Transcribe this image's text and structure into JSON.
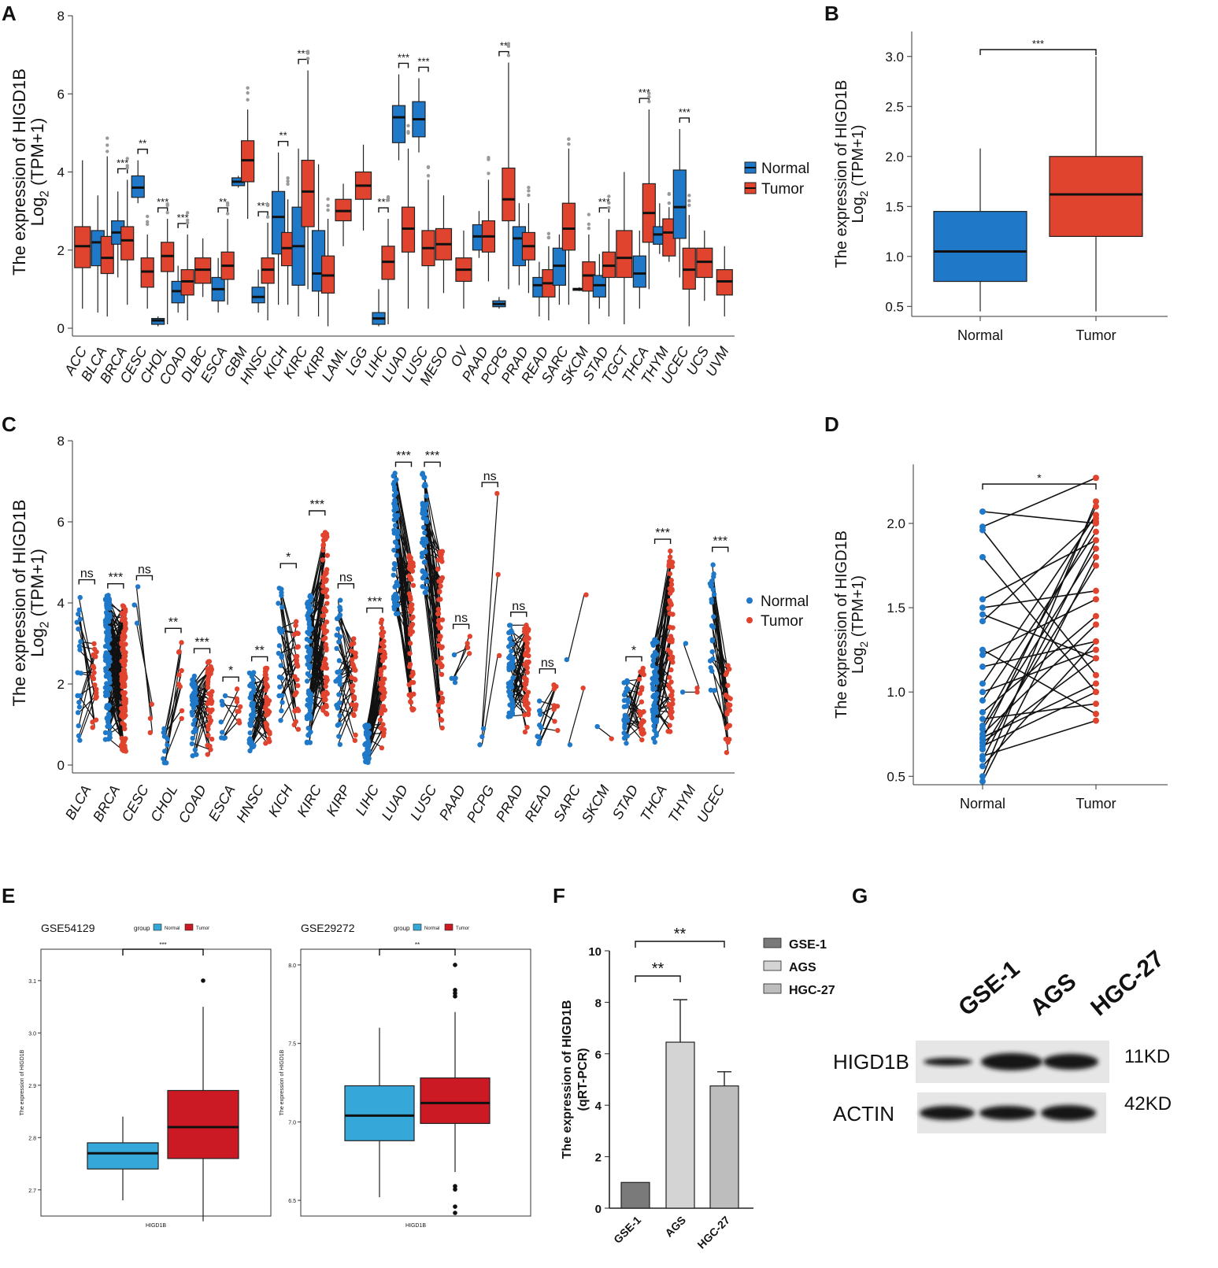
{
  "colors": {
    "normal": "#1f78c8",
    "tumor": "#e0442f",
    "geo_normal": "#35a7d8",
    "geo_tumor": "#cc1a24",
    "bar_gse1": "#7a7a7a",
    "bar_ags": "#d4d4d4",
    "bar_hgc27": "#bdbdbd",
    "axis": "#222222",
    "outlier": "#9a9a9a"
  },
  "panels": {
    "A": "A",
    "B": "B",
    "C": "C",
    "D": "D",
    "E": "E",
    "F": "F",
    "G": "G"
  },
  "common": {
    "ylabel_line1": "The expression of HIGD1B",
    "ylabel_line2": "Log",
    "ylabel_sub": "2",
    "ylabel_rest": " (TPM+1)",
    "legend_normal": "Normal",
    "legend_tumor": "Tumor"
  },
  "chart_data": [
    {
      "panel": "A",
      "type": "box",
      "ylim": [
        0,
        8
      ],
      "yticks": [
        "0",
        "2",
        "4",
        "6",
        "8"
      ],
      "cancers": [
        {
          "name": "ACC",
          "tumor": [
            0.5,
            1.55,
            2.1,
            2.6,
            4.3
          ]
        },
        {
          "name": "BLCA",
          "normal": [
            0.4,
            1.6,
            2.2,
            2.5,
            3.4
          ],
          "tumor": [
            0.3,
            1.4,
            1.8,
            2.35,
            4.4
          ],
          "sig": ""
        },
        {
          "name": "BRCA",
          "normal": [
            1.3,
            2.15,
            2.45,
            2.75,
            3.5
          ],
          "tumor": [
            0.6,
            1.75,
            2.25,
            2.6,
            3.8
          ],
          "sig": "***"
        },
        {
          "name": "CESC",
          "normal": [
            3.2,
            3.35,
            3.6,
            3.9,
            4.3
          ],
          "tumor": [
            0.5,
            1.05,
            1.45,
            1.8,
            2.4
          ],
          "sig": "**"
        },
        {
          "name": "CHOL",
          "normal": [
            0.05,
            0.1,
            0.2,
            0.25,
            0.3
          ],
          "tumor": [
            0.1,
            1.45,
            1.85,
            2.2,
            2.8
          ],
          "sig": "***"
        },
        {
          "name": "COAD",
          "normal": [
            0.4,
            0.65,
            0.95,
            1.2,
            1.6
          ],
          "tumor": [
            0.2,
            0.85,
            1.2,
            1.5,
            2.4
          ],
          "sig": "***"
        },
        {
          "name": "DLBC",
          "tumor": [
            0.8,
            1.15,
            1.5,
            1.8,
            2.3
          ]
        },
        {
          "name": "ESCA",
          "normal": [
            0.4,
            0.7,
            1.0,
            1.3,
            1.8
          ],
          "tumor": [
            0.6,
            1.25,
            1.6,
            1.95,
            2.8
          ],
          "sig": "**"
        },
        {
          "name": "GBM",
          "normal": [
            3.6,
            3.65,
            3.75,
            3.85,
            3.9
          ],
          "tumor": [
            2.8,
            3.75,
            4.3,
            4.8,
            5.6
          ],
          "sig": ""
        },
        {
          "name": "HNSC",
          "normal": [
            0.4,
            0.65,
            0.8,
            1.05,
            1.5
          ],
          "tumor": [
            0.2,
            1.15,
            1.5,
            1.8,
            2.7
          ],
          "sig": "***"
        },
        {
          "name": "KICH",
          "normal": [
            0.6,
            1.9,
            2.85,
            3.5,
            4.5
          ],
          "tumor": [
            0.6,
            1.6,
            2.05,
            2.45,
            3.3
          ],
          "sig": "**"
        },
        {
          "name": "KIRC",
          "normal": [
            0.3,
            1.1,
            2.1,
            3.1,
            4.6
          ],
          "tumor": [
            1.0,
            2.6,
            3.5,
            4.3,
            6.6
          ],
          "sig": "***"
        },
        {
          "name": "KIRP",
          "normal": [
            0.3,
            0.95,
            1.4,
            2.5,
            4.2
          ],
          "tumor": [
            0.05,
            0.9,
            1.35,
            1.85,
            2.8
          ],
          "sig": ""
        },
        {
          "name": "LAML",
          "tumor": [
            2.1,
            2.75,
            3.0,
            3.3,
            3.7
          ]
        },
        {
          "name": "LGG",
          "tumor": [
            2.5,
            3.3,
            3.65,
            4.0,
            4.7
          ]
        },
        {
          "name": "LIHC",
          "normal": [
            0.05,
            0.1,
            0.25,
            0.4,
            1.0
          ],
          "tumor": [
            0.1,
            1.25,
            1.7,
            2.1,
            2.8
          ],
          "sig": "***"
        },
        {
          "name": "LUAD",
          "normal": [
            4.3,
            4.75,
            5.4,
            5.7,
            6.5
          ],
          "tumor": [
            0.5,
            1.95,
            2.55,
            3.1,
            4.6
          ],
          "sig": "***"
        },
        {
          "name": "LUSC",
          "normal": [
            4.5,
            4.9,
            5.35,
            5.8,
            6.4
          ],
          "tumor": [
            0.5,
            1.6,
            2.05,
            2.5,
            3.8
          ],
          "sig": "***"
        },
        {
          "name": "MESO",
          "tumor": [
            0.9,
            1.75,
            2.15,
            2.55,
            3.4
          ]
        },
        {
          "name": "OV",
          "tumor": [
            0.5,
            1.2,
            1.5,
            1.8,
            2.5
          ]
        },
        {
          "name": "PAAD",
          "normal": [
            1.8,
            2.0,
            2.35,
            2.65,
            3.0
          ],
          "tumor": [
            1.2,
            1.95,
            2.35,
            2.75,
            3.8
          ],
          "sig": ""
        },
        {
          "name": "PCPG",
          "normal": [
            0.5,
            0.55,
            0.62,
            0.7,
            0.8
          ],
          "tumor": [
            1.0,
            2.75,
            3.3,
            4.1,
            6.8
          ],
          "sig": "**"
        },
        {
          "name": "PRAD",
          "normal": [
            1.1,
            1.6,
            2.3,
            2.6,
            3.2
          ],
          "tumor": [
            0.9,
            1.75,
            2.1,
            2.45,
            3.2
          ],
          "sig": ""
        },
        {
          "name": "READ",
          "normal": [
            0.3,
            0.8,
            1.1,
            1.3,
            1.7
          ],
          "tumor": [
            0.2,
            0.8,
            1.15,
            1.5,
            2.1
          ],
          "sig": ""
        },
        {
          "name": "SARC",
          "normal": [
            0.6,
            1.1,
            1.6,
            2.05,
            2.4
          ],
          "tumor": [
            0.6,
            2.0,
            2.55,
            3.2,
            4.6
          ],
          "sig": ""
        },
        {
          "name": "SKCM",
          "normal": [
            0.95,
            0.97,
            1.0,
            1.02,
            1.05
          ],
          "tumor": [
            0.1,
            0.95,
            1.35,
            1.7,
            2.4
          ],
          "sig": ""
        },
        {
          "name": "STAD",
          "normal": [
            0.5,
            0.8,
            1.1,
            1.35,
            1.9
          ],
          "tumor": [
            0.3,
            1.3,
            1.6,
            1.95,
            2.8
          ],
          "sig": "***"
        },
        {
          "name": "TGCT",
          "tumor": [
            0.1,
            1.3,
            1.8,
            2.5,
            4.0
          ]
        },
        {
          "name": "THCA",
          "normal": [
            0.5,
            1.05,
            1.4,
            1.85,
            2.5
          ],
          "tumor": [
            1.0,
            2.2,
            2.95,
            3.7,
            5.6
          ],
          "sig": "***"
        },
        {
          "name": "THYM",
          "normal": [
            1.9,
            2.15,
            2.4,
            2.6,
            3.2
          ],
          "tumor": [
            1.7,
            1.85,
            2.45,
            2.8,
            3.1
          ],
          "sig": ""
        },
        {
          "name": "UCEC",
          "normal": [
            1.3,
            2.3,
            3.1,
            4.05,
            5.1
          ],
          "tumor": [
            0.05,
            1.0,
            1.5,
            2.05,
            2.9
          ],
          "sig": "***"
        },
        {
          "name": "UCS",
          "tumor": [
            0.7,
            1.3,
            1.7,
            2.05,
            2.5
          ]
        },
        {
          "name": "UVM",
          "tumor": [
            0.3,
            0.85,
            1.2,
            1.5,
            2.1
          ]
        }
      ]
    },
    {
      "panel": "B",
      "type": "box",
      "ylim": [
        0.4,
        3.25
      ],
      "yticks": [
        "0.5",
        "1.0",
        "1.5",
        "2.0",
        "2.5",
        "3.0"
      ],
      "categories": [
        "Normal",
        "Tumor"
      ],
      "normal": [
        0.45,
        0.75,
        1.05,
        1.45,
        2.08
      ],
      "tumor": [
        0.45,
        1.2,
        1.62,
        2.0,
        3.0
      ],
      "sig": "***"
    },
    {
      "panel": "C",
      "type": "paired-scatter",
      "ylim": [
        0,
        8
      ],
      "yticks": [
        "0",
        "2",
        "4",
        "6",
        "8"
      ],
      "cancers": [
        {
          "name": "BLCA",
          "n": 19,
          "normal": [
            0.4,
            4.3
          ],
          "tumor": [
            0.8,
            3.2
          ],
          "sig": "ns"
        },
        {
          "name": "BRCA",
          "n": 112,
          "normal": [
            0.6,
            4.2
          ],
          "tumor": [
            0.3,
            4.0
          ],
          "sig": "***"
        },
        {
          "name": "CESC",
          "n": 3,
          "normal": [
            3.5,
            4.4
          ],
          "tumor": [
            0.8,
            1.5
          ],
          "sig": "ns"
        },
        {
          "name": "CHOL",
          "n": 9,
          "normal": [
            0.05,
            0.9
          ],
          "tumor": [
            0.9,
            3.1
          ],
          "sig": "**"
        },
        {
          "name": "COAD",
          "n": 41,
          "normal": [
            0.2,
            2.2
          ],
          "tumor": [
            0.1,
            2.6
          ],
          "sig": "***"
        },
        {
          "name": "ESCA",
          "n": 8,
          "normal": [
            0.6,
            1.8
          ],
          "tumor": [
            0.9,
            1.9
          ],
          "sig": "*"
        },
        {
          "name": "HNSC",
          "n": 43,
          "normal": [
            0.3,
            2.3
          ],
          "tumor": [
            0.5,
            2.4
          ],
          "sig": "**"
        },
        {
          "name": "KICH",
          "n": 25,
          "normal": [
            1.0,
            4.7
          ],
          "tumor": [
            0.8,
            3.6
          ],
          "sig": "*"
        },
        {
          "name": "KIRC",
          "n": 72,
          "normal": [
            0.5,
            4.2
          ],
          "tumor": [
            1.2,
            6.0
          ],
          "sig": "***"
        },
        {
          "name": "KIRP",
          "n": 32,
          "normal": [
            0.5,
            4.2
          ],
          "tumor": [
            0.6,
            3.2
          ],
          "sig": "ns"
        },
        {
          "name": "LIHC",
          "n": 50,
          "normal": [
            0.05,
            1.0
          ],
          "tumor": [
            0.4,
            3.6
          ],
          "sig": "***"
        },
        {
          "name": "LUAD",
          "n": 57,
          "normal": [
            3.6,
            7.2
          ],
          "tumor": [
            1.2,
            5.2
          ],
          "sig": "***"
        },
        {
          "name": "LUSC",
          "n": 49,
          "normal": [
            4.2,
            7.2
          ],
          "tumor": [
            0.9,
            5.3
          ],
          "sig": "***"
        },
        {
          "name": "PAAD",
          "n": 4,
          "normal": [
            1.5,
            3.2
          ],
          "tumor": [
            2.2,
            3.2
          ],
          "sig": "ns"
        },
        {
          "name": "PCPG",
          "n": 3,
          "normal": [
            0.5,
            0.9
          ],
          "tumor": [
            2.7,
            6.7
          ],
          "sig": "ns"
        },
        {
          "name": "PRAD",
          "n": 50,
          "normal": [
            1.0,
            3.5
          ],
          "tumor": [
            0.8,
            3.5
          ],
          "sig": "ns"
        },
        {
          "name": "READ",
          "n": 10,
          "normal": [
            0.4,
            1.6
          ],
          "tumor": [
            0.5,
            2.1
          ],
          "sig": "ns"
        },
        {
          "name": "SARC",
          "n": 2,
          "normal": [
            0.5,
            2.6
          ],
          "tumor": [
            1.9,
            4.2
          ],
          "sig": ""
        },
        {
          "name": "SKCM",
          "n": 1,
          "normal": [
            0.95,
            0.95
          ],
          "tumor": [
            0.65,
            0.65
          ],
          "sig": ""
        },
        {
          "name": "STAD",
          "n": 27,
          "normal": [
            0.5,
            2.1
          ],
          "tumor": [
            0.6,
            2.4
          ],
          "sig": "*"
        },
        {
          "name": "THCA",
          "n": 58,
          "normal": [
            0.5,
            3.2
          ],
          "tumor": [
            0.8,
            5.3
          ],
          "sig": "***"
        },
        {
          "name": "THYM",
          "n": 2,
          "normal": [
            1.8,
            3.0
          ],
          "tumor": [
            1.8,
            1.9
          ],
          "sig": ""
        },
        {
          "name": "UCEC",
          "n": 23,
          "normal": [
            1.5,
            5.1
          ],
          "tumor": [
            0.0,
            2.5
          ],
          "sig": "***"
        }
      ]
    },
    {
      "panel": "D",
      "type": "paired-scatter",
      "ylim": [
        0.45,
        2.35
      ],
      "yticks": [
        "0.5",
        "1.0",
        "1.5",
        "2.0"
      ],
      "categories": [
        "Normal",
        "Tumor"
      ],
      "sig": "*",
      "pairs": [
        [
          2.07,
          2.0
        ],
        [
          1.98,
          2.27
        ],
        [
          1.96,
          1.1
        ],
        [
          1.8,
          1.0
        ],
        [
          1.55,
          1.9
        ],
        [
          1.5,
          1.6
        ],
        [
          1.46,
          1.2
        ],
        [
          1.42,
          2.03
        ],
        [
          1.25,
          0.87
        ],
        [
          1.22,
          1.55
        ],
        [
          1.15,
          1.3
        ],
        [
          1.05,
          2.05
        ],
        [
          1.0,
          1.25
        ],
        [
          0.95,
          1.95
        ],
        [
          0.88,
          1.45
        ],
        [
          0.84,
          0.93
        ],
        [
          0.8,
          2.01
        ],
        [
          0.78,
          1.85
        ],
        [
          0.75,
          1.4
        ],
        [
          0.73,
          1.05
        ],
        [
          0.72,
          2.1
        ],
        [
          0.7,
          1.2
        ],
        [
          0.68,
          1.0
        ],
        [
          0.66,
          1.75
        ],
        [
          0.62,
          0.83
        ],
        [
          0.6,
          1.9
        ],
        [
          0.56,
          1.3
        ],
        [
          0.5,
          2.13
        ],
        [
          0.47,
          1.8
        ]
      ]
    },
    {
      "panel": "E1",
      "type": "box",
      "title": "GSE54129",
      "legend_title": "group",
      "xlabel": "HIGD1B",
      "ylabel": "The expression of HIGD1B",
      "ylim": [
        2.65,
        3.16
      ],
      "yticks": [
        "2.7",
        "2.8",
        "2.9",
        "3.0",
        "3.1"
      ],
      "normal": [
        2.68,
        2.74,
        2.77,
        2.79,
        2.84
      ],
      "tumor": [
        2.64,
        2.76,
        2.82,
        2.89,
        3.05
      ],
      "tumor_outliers": [
        3.1
      ],
      "sig": "***"
    },
    {
      "panel": "E2",
      "type": "box",
      "title": "GSE29272",
      "legend_title": "group",
      "xlabel": "HIGD1B",
      "ylabel": "The expression of HIGD1B",
      "ylim": [
        6.4,
        8.1
      ],
      "yticks": [
        "6.5",
        "7.0",
        "7.5",
        "8.0"
      ],
      "normal": [
        6.52,
        6.88,
        7.04,
        7.23,
        7.6
      ],
      "tumor": [
        6.68,
        6.99,
        7.12,
        7.28,
        7.7
      ],
      "tumor_outliers": [
        6.42,
        6.46,
        6.57,
        6.59,
        7.8,
        7.82,
        7.84,
        8.0
      ],
      "sig": "**"
    },
    {
      "panel": "F",
      "type": "bar",
      "ylabel_line1": "The expression of HIGD1B",
      "ylabel_line2": "(qRT-PCR)",
      "ylim": [
        0,
        10
      ],
      "yticks": [
        "0",
        "2",
        "4",
        "6",
        "8",
        "10"
      ],
      "categories": [
        "GSE-1",
        "AGS",
        "HGC-27"
      ],
      "values": [
        1.0,
        6.45,
        4.75
      ],
      "errors": [
        0,
        1.65,
        0.55
      ],
      "sig": [
        "**",
        "**"
      ]
    }
  ],
  "blot": {
    "lanes": [
      "GSE-1",
      "AGS",
      "HGC-27"
    ],
    "rows": [
      {
        "label": "HIGD1B",
        "size": "11KD"
      },
      {
        "label": "ACTIN",
        "size": "42KD"
      }
    ]
  }
}
